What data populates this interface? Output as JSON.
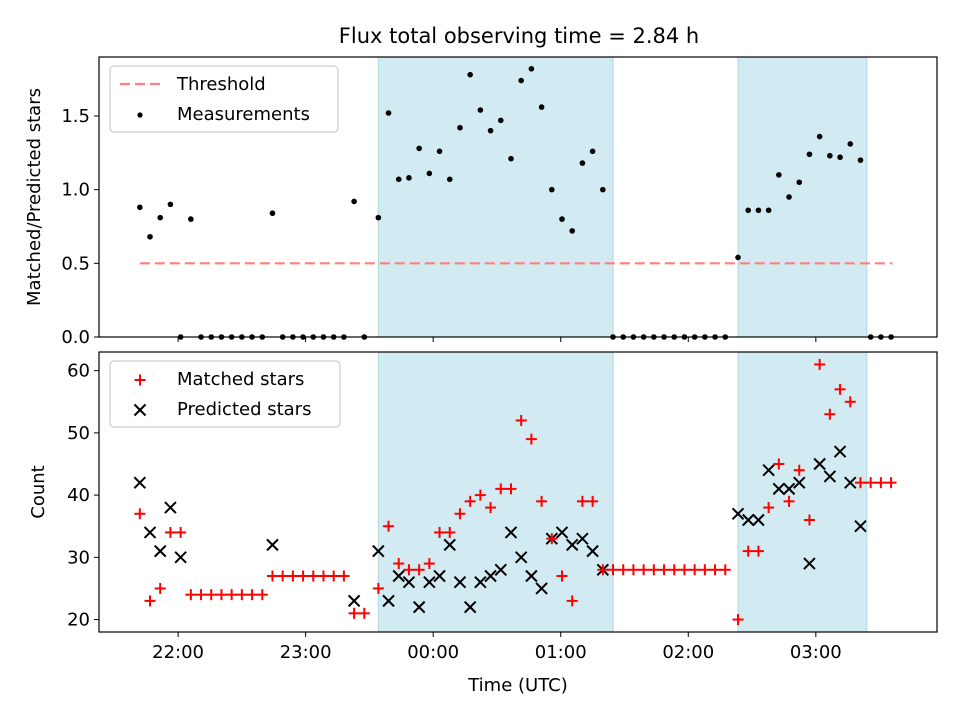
{
  "title": "Flux total observing time = 2.84 h",
  "colors": {
    "threshold": "#ff7f7f",
    "measurement": "#000000",
    "matched": "#ff0000",
    "predicted": "#000000",
    "span_fill": "#add8e6"
  },
  "chart_data": [
    {
      "type": "scatter",
      "panel": "top",
      "ylabel": "Matched/Predicted stars",
      "xlabel": "",
      "x_unit": "hours since 00:00 UTC",
      "xlim": [
        -2.62,
        3.95
      ],
      "ylim": [
        0.0,
        1.9
      ],
      "yticks": [
        0.0,
        0.5,
        1.0,
        1.5
      ],
      "ytick_labels": [
        "0.0",
        "0.5",
        "1.0",
        "1.5"
      ],
      "legend": {
        "position": "upper-left",
        "entries": [
          "Threshold",
          "Measurements"
        ]
      },
      "shaded_spans": [
        [
          -0.43,
          1.41
        ],
        [
          2.39,
          3.4
        ]
      ],
      "threshold": {
        "name": "Threshold",
        "y": 0.5,
        "x_range": [
          -2.3,
          3.6
        ]
      },
      "series": [
        {
          "name": "Measurements",
          "x": [
            -2.3,
            -2.22,
            -2.14,
            -2.06,
            -1.98,
            -1.9,
            -1.82,
            -1.74,
            -1.66,
            -1.58,
            -1.5,
            -1.42,
            -1.34,
            -1.26,
            -1.18,
            -1.1,
            -1.02,
            -0.94,
            -0.86,
            -0.78,
            -0.7,
            -0.62,
            -0.54,
            -0.43,
            -0.35,
            -0.27,
            -0.19,
            -0.11,
            -0.03,
            0.05,
            0.13,
            0.21,
            0.29,
            0.37,
            0.45,
            0.53,
            0.61,
            0.69,
            0.77,
            0.85,
            0.93,
            1.01,
            1.09,
            1.17,
            1.25,
            1.33,
            1.41,
            1.49,
            1.57,
            1.65,
            1.73,
            1.81,
            1.89,
            1.97,
            2.05,
            2.13,
            2.21,
            2.29,
            2.39,
            2.47,
            2.55,
            2.63,
            2.71,
            2.79,
            2.87,
            2.95,
            3.03,
            3.11,
            3.19,
            3.27,
            3.35,
            3.43,
            3.51,
            3.59
          ],
          "y": [
            0.88,
            0.68,
            0.81,
            0.9,
            0.0,
            0.8,
            0.0,
            0.0,
            0.0,
            0.0,
            0.0,
            0.0,
            0.0,
            0.84,
            0.0,
            0.0,
            0.0,
            0.0,
            0.0,
            0.0,
            0.0,
            0.92,
            0.0,
            0.81,
            1.52,
            1.07,
            1.08,
            1.28,
            1.11,
            1.26,
            1.07,
            1.42,
            1.78,
            1.54,
            1.4,
            1.47,
            1.21,
            1.74,
            1.82,
            1.56,
            1.0,
            0.8,
            0.72,
            1.18,
            1.26,
            1.0,
            0.0,
            0.0,
            0.0,
            0.0,
            0.0,
            0.0,
            0.0,
            0.0,
            0.0,
            0.0,
            0.0,
            0.0,
            0.54,
            0.86,
            0.86,
            0.86,
            1.1,
            0.95,
            1.05,
            1.24,
            1.36,
            1.23,
            1.22,
            1.31,
            1.2,
            0.0,
            0.0,
            0.0
          ]
        }
      ]
    },
    {
      "type": "scatter",
      "panel": "bottom",
      "ylabel": "Count",
      "xlabel": "Time (UTC)",
      "x_unit": "hours since 00:00 UTC",
      "xlim": [
        -2.62,
        3.95
      ],
      "ylim": [
        18,
        63
      ],
      "yticks": [
        20,
        30,
        40,
        50,
        60
      ],
      "ytick_labels": [
        "20",
        "30",
        "40",
        "50",
        "60"
      ],
      "xticks": [
        -2,
        -1,
        0,
        1,
        2,
        3
      ],
      "xtick_labels": [
        "22:00",
        "23:00",
        "00:00",
        "01:00",
        "02:00",
        "03:00"
      ],
      "legend": {
        "position": "upper-left",
        "entries": [
          "Matched stars",
          "Predicted stars"
        ]
      },
      "shaded_spans": [
        [
          -0.43,
          1.41
        ],
        [
          2.39,
          3.4
        ]
      ],
      "series": [
        {
          "name": "Matched stars",
          "marker": "plus",
          "x": [
            -2.3,
            -2.22,
            -2.14,
            -2.06,
            -1.98,
            -1.9,
            -1.82,
            -1.74,
            -1.66,
            -1.58,
            -1.5,
            -1.42,
            -1.34,
            -1.26,
            -1.18,
            -1.1,
            -1.02,
            -0.94,
            -0.86,
            -0.78,
            -0.7,
            -0.62,
            -0.54,
            -0.43,
            -0.35,
            -0.27,
            -0.19,
            -0.11,
            -0.03,
            0.05,
            0.13,
            0.21,
            0.29,
            0.37,
            0.45,
            0.53,
            0.61,
            0.69,
            0.77,
            0.85,
            0.93,
            1.01,
            1.09,
            1.17,
            1.25,
            1.33,
            1.41,
            1.49,
            1.57,
            1.65,
            1.73,
            1.81,
            1.89,
            1.97,
            2.05,
            2.13,
            2.21,
            2.29,
            2.39,
            2.47,
            2.55,
            2.63,
            2.71,
            2.79,
            2.87,
            2.95,
            3.03,
            3.11,
            3.19,
            3.27,
            3.35,
            3.43,
            3.51,
            3.59
          ],
          "y": [
            37,
            23,
            25,
            34,
            34,
            24,
            24,
            24,
            24,
            24,
            24,
            24,
            24,
            27,
            27,
            27,
            27,
            27,
            27,
            27,
            27,
            21,
            21,
            25,
            35,
            29,
            28,
            28,
            29,
            34,
            34,
            37,
            39,
            40,
            38,
            41,
            41,
            52,
            49,
            39,
            33,
            27,
            23,
            39,
            39,
            28,
            28,
            28,
            28,
            28,
            28,
            28,
            28,
            28,
            28,
            28,
            28,
            28,
            20,
            31,
            31,
            38,
            45,
            39,
            44,
            36,
            61,
            53,
            57,
            55,
            42,
            42,
            42,
            42
          ]
        },
        {
          "name": "Predicted stars",
          "marker": "x",
          "x": [
            -2.3,
            -2.22,
            -2.14,
            -2.06,
            -1.98,
            -1.26,
            -0.62,
            -0.43,
            -0.35,
            -0.27,
            -0.19,
            -0.11,
            -0.03,
            0.05,
            0.13,
            0.21,
            0.29,
            0.37,
            0.45,
            0.53,
            0.61,
            0.69,
            0.77,
            0.85,
            0.93,
            1.01,
            1.09,
            1.17,
            1.25,
            1.33,
            2.39,
            2.47,
            2.55,
            2.63,
            2.71,
            2.79,
            2.87,
            2.95,
            3.03,
            3.11,
            3.19,
            3.27,
            3.35
          ],
          "y": [
            42,
            34,
            31,
            38,
            30,
            32,
            23,
            31,
            23,
            27,
            26,
            22,
            26,
            27,
            32,
            26,
            22,
            26,
            27,
            28,
            34,
            30,
            27,
            25,
            33,
            34,
            32,
            33,
            31,
            28,
            37,
            36,
            36,
            44,
            41,
            41,
            42,
            29,
            45,
            43,
            47,
            42,
            35
          ]
        }
      ]
    }
  ]
}
